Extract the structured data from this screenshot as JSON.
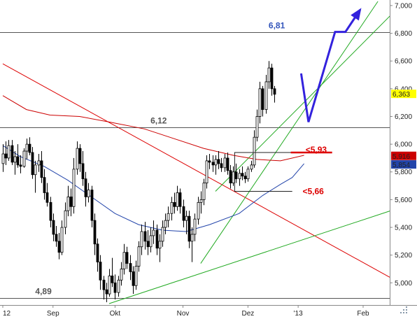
{
  "chart_data": {
    "type": "candlestick",
    "ylim": [
      4.84,
      7.04
    ],
    "yticks": [
      "5,000",
      "5,200",
      "5,400",
      "5,600",
      "5,800",
      "6,000",
      "6,200",
      "6,400",
      "6,600",
      "6,800",
      "7,000"
    ],
    "ytick_values": [
      5.0,
      5.2,
      5.4,
      5.6,
      5.8,
      6.0,
      6.2,
      6.4,
      6.6,
      6.8,
      7.0
    ],
    "xlim": [
      0,
      131
    ],
    "xticks": [
      {
        "label": "12",
        "x": 0
      },
      {
        "label": "Sep",
        "x": 17
      },
      {
        "label": "Okt",
        "x": 38
      },
      {
        "label": "Nov",
        "x": 61
      },
      {
        "label": "Dez",
        "x": 83
      },
      {
        "label": "'13",
        "x": 100
      },
      {
        "label": "Feb",
        "x": 122
      }
    ],
    "horizontal_levels": [
      {
        "value": 6.81,
        "label": "6,81",
        "label_x": 90,
        "color": "#3355bb"
      },
      {
        "value": 6.12,
        "label": "6,12",
        "label_x": 50,
        "color": "#555555"
      },
      {
        "value": 4.89,
        "label": "4,89",
        "label_x": 11,
        "color": "#555555"
      }
    ],
    "annotations": [
      {
        "label": "<5,93",
        "x": 102.5,
        "y": 5.96,
        "color": "#dd0000"
      },
      {
        "label": "<5,66",
        "x": 101.5,
        "y": 5.66,
        "color": "#dd0000"
      }
    ],
    "right_badges": [
      {
        "label": "6,363",
        "value": 6.363,
        "bg": "#ffff00",
        "fg": "#000000"
      },
      {
        "label": "5,916",
        "value": 5.916,
        "bg": "#cc0000",
        "fg": "#ffffff"
      },
      {
        "label": "5,854",
        "value": 5.854,
        "bg": "#2244aa",
        "fg": "#ffffff"
      }
    ],
    "trend_lines": [
      {
        "color": "#dd0000",
        "points": [
          [
            0,
            6.58
          ],
          [
            137,
            4.97
          ]
        ]
      },
      {
        "color": "#22aa22",
        "points": [
          [
            36,
            4.85
          ],
          [
            137,
            5.56
          ]
        ]
      },
      {
        "color": "#22aa22",
        "points": [
          [
            67,
            5.14
          ],
          [
            127,
            7.03
          ]
        ]
      },
      {
        "color": "#22aa22",
        "points": [
          [
            72,
            5.66
          ],
          [
            136,
            7.03
          ]
        ]
      }
    ],
    "moving_averages": [
      {
        "color": "#cc0000",
        "points": [
          [
            0,
            6.35
          ],
          [
            8,
            6.25
          ],
          [
            16,
            6.21
          ],
          [
            26,
            6.2
          ],
          [
            36,
            6.16
          ],
          [
            48,
            6.11
          ],
          [
            58,
            6.04
          ],
          [
            68,
            5.97
          ],
          [
            78,
            5.92
          ],
          [
            86,
            5.89
          ],
          [
            94,
            5.88
          ],
          [
            102,
            5.92
          ]
        ]
      },
      {
        "color": "#2244aa",
        "points": [
          [
            0,
            5.99
          ],
          [
            6,
            5.91
          ],
          [
            14,
            5.84
          ],
          [
            22,
            5.74
          ],
          [
            30,
            5.62
          ],
          [
            38,
            5.5
          ],
          [
            46,
            5.42
          ],
          [
            54,
            5.38
          ],
          [
            62,
            5.37
          ],
          [
            70,
            5.42
          ],
          [
            80,
            5.5
          ],
          [
            88,
            5.63
          ],
          [
            94,
            5.71
          ],
          [
            98,
            5.76
          ],
          [
            102,
            5.86
          ]
        ]
      }
    ],
    "support_box": {
      "x0": 78.5,
      "x1": 98,
      "top": 5.94,
      "bottom": 5.66,
      "color": "#222222"
    },
    "red_support_line": {
      "x0": 97.5,
      "x1": 111.5,
      "value": 5.94,
      "color": "#dd0000"
    },
    "forecast_arrow": {
      "color": "#3322dd",
      "points": [
        [
          101,
          6.51
        ],
        [
          103.5,
          6.16
        ],
        [
          112.5,
          6.81
        ],
        [
          116,
          6.81
        ],
        [
          121,
          6.97
        ]
      ]
    },
    "candles": [
      [
        5.86,
        6.0,
        5.8,
        5.93
      ],
      [
        5.93,
        6.02,
        5.85,
        5.9
      ],
      [
        5.9,
        6.03,
        5.88,
        5.99
      ],
      [
        5.99,
        6.03,
        5.85,
        5.87
      ],
      [
        5.87,
        5.95,
        5.78,
        5.91
      ],
      [
        5.91,
        6.0,
        5.83,
        5.85
      ],
      [
        5.85,
        5.92,
        5.79,
        5.84
      ],
      [
        5.84,
        5.97,
        5.83,
        5.95
      ],
      [
        5.95,
        6.04,
        5.89,
        6.0
      ],
      [
        6.0,
        6.05,
        5.92,
        5.94
      ],
      [
        5.94,
        5.98,
        5.75,
        5.78
      ],
      [
        5.78,
        5.88,
        5.65,
        5.85
      ],
      [
        5.85,
        5.93,
        5.8,
        5.88
      ],
      [
        5.88,
        5.95,
        5.72,
        5.76
      ],
      [
        5.76,
        5.82,
        5.6,
        5.65
      ],
      [
        5.65,
        5.72,
        5.55,
        5.58
      ],
      [
        5.58,
        5.62,
        5.4,
        5.45
      ],
      [
        5.45,
        5.5,
        5.3,
        5.35
      ],
      [
        5.35,
        5.41,
        5.26,
        5.3
      ],
      [
        5.3,
        5.36,
        5.17,
        5.22
      ],
      [
        5.22,
        5.45,
        5.2,
        5.4
      ],
      [
        5.4,
        5.58,
        5.35,
        5.52
      ],
      [
        5.52,
        5.7,
        5.48,
        5.62
      ],
      [
        5.62,
        5.68,
        5.48,
        5.55
      ],
      [
        5.55,
        5.9,
        5.5,
        5.82
      ],
      [
        5.82,
        6.02,
        5.78,
        5.97
      ],
      [
        5.97,
        6.0,
        5.8,
        5.86
      ],
      [
        5.86,
        5.95,
        5.7,
        5.75
      ],
      [
        5.75,
        5.8,
        5.55,
        5.62
      ],
      [
        5.62,
        5.72,
        5.58,
        5.67
      ],
      [
        5.67,
        5.7,
        5.4,
        5.45
      ],
      [
        5.45,
        5.5,
        5.2,
        5.28
      ],
      [
        5.28,
        5.32,
        5.08,
        5.15
      ],
      [
        5.15,
        5.2,
        4.95,
        5.02
      ],
      [
        5.02,
        5.05,
        4.88,
        4.95
      ],
      [
        4.95,
        5.0,
        4.86,
        4.92
      ],
      [
        4.92,
        5.1,
        4.9,
        5.05
      ],
      [
        5.05,
        5.18,
        4.97,
        5.0
      ],
      [
        5.0,
        5.06,
        4.88,
        4.93
      ],
      [
        4.93,
        5.05,
        4.9,
        5.02
      ],
      [
        5.02,
        5.15,
        4.98,
        5.1
      ],
      [
        5.1,
        5.28,
        5.06,
        5.22
      ],
      [
        5.22,
        5.26,
        5.1,
        5.14
      ],
      [
        5.14,
        5.2,
        5.02,
        5.08
      ],
      [
        5.08,
        5.12,
        4.92,
        4.98
      ],
      [
        4.98,
        5.16,
        4.95,
        5.12
      ],
      [
        5.12,
        5.3,
        5.08,
        5.26
      ],
      [
        5.26,
        5.42,
        5.2,
        5.37
      ],
      [
        5.37,
        5.44,
        5.24,
        5.3
      ],
      [
        5.3,
        5.38,
        5.2,
        5.26
      ],
      [
        5.26,
        5.4,
        5.22,
        5.34
      ],
      [
        5.34,
        5.45,
        5.28,
        5.38
      ],
      [
        5.38,
        5.42,
        5.2,
        5.25
      ],
      [
        5.25,
        5.35,
        5.15,
        5.3
      ],
      [
        5.3,
        5.45,
        5.26,
        5.4
      ],
      [
        5.4,
        5.5,
        5.35,
        5.45
      ],
      [
        5.45,
        5.55,
        5.4,
        5.5
      ],
      [
        5.5,
        5.62,
        5.45,
        5.58
      ],
      [
        5.58,
        5.65,
        5.5,
        5.55
      ],
      [
        5.55,
        5.7,
        5.52,
        5.65
      ],
      [
        5.65,
        5.68,
        5.5,
        5.55
      ],
      [
        5.55,
        5.6,
        5.4,
        5.45
      ],
      [
        5.45,
        5.52,
        5.35,
        5.48
      ],
      [
        5.48,
        5.52,
        5.25,
        5.3
      ],
      [
        5.3,
        5.4,
        5.15,
        5.35
      ],
      [
        5.35,
        5.5,
        5.3,
        5.46
      ],
      [
        5.46,
        5.62,
        5.42,
        5.58
      ],
      [
        5.58,
        5.66,
        5.5,
        5.6
      ],
      [
        5.6,
        5.75,
        5.56,
        5.72
      ],
      [
        5.72,
        5.92,
        5.68,
        5.88
      ],
      [
        5.88,
        5.93,
        5.82,
        5.87
      ],
      [
        5.87,
        5.92,
        5.8,
        5.85
      ],
      [
        5.85,
        5.92,
        5.78,
        5.89
      ],
      [
        5.89,
        5.95,
        5.82,
        5.86
      ],
      [
        5.86,
        5.9,
        5.8,
        5.83
      ],
      [
        5.83,
        5.93,
        5.8,
        5.9
      ],
      [
        5.9,
        5.94,
        5.78,
        5.81
      ],
      [
        5.81,
        5.85,
        5.68,
        5.72
      ],
      [
        5.72,
        5.84,
        5.7,
        5.8
      ],
      [
        5.8,
        5.86,
        5.72,
        5.75
      ],
      [
        5.75,
        5.82,
        5.7,
        5.79
      ],
      [
        5.79,
        5.84,
        5.74,
        5.77
      ],
      [
        5.77,
        5.8,
        5.72,
        5.75
      ],
      [
        5.75,
        5.84,
        5.73,
        5.82
      ],
      [
        5.82,
        5.88,
        5.8,
        5.85
      ],
      [
        5.85,
        6.1,
        5.83,
        6.05
      ],
      [
        6.05,
        6.25,
        6.02,
        6.2
      ],
      [
        6.2,
        6.45,
        6.15,
        6.4
      ],
      [
        6.4,
        6.42,
        6.2,
        6.25
      ],
      [
        6.25,
        6.5,
        6.22,
        6.45
      ],
      [
        6.45,
        6.6,
        6.4,
        6.55
      ],
      [
        6.55,
        6.58,
        6.35,
        6.4
      ],
      [
        6.4,
        6.42,
        6.3,
        6.36
      ]
    ]
  }
}
